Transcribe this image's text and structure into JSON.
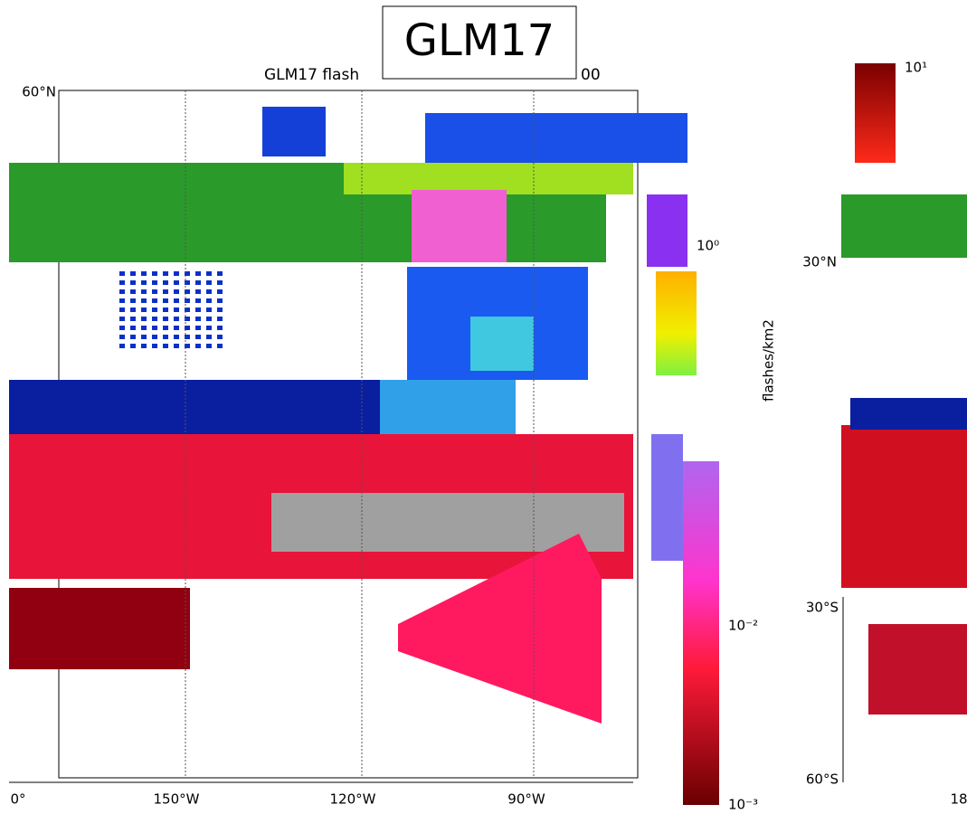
{
  "header": {
    "title": "GLM17"
  },
  "map": {
    "title_left": "GLM17 flash",
    "title_right": "00",
    "lat_labels": [
      "60°N",
      "30°N",
      "30°S",
      "60°S"
    ],
    "lon_labels": [
      "0°",
      "150°W",
      "120°W",
      "90°W",
      "18"
    ]
  },
  "colorbar": {
    "ticks": [
      "10¹",
      "10⁰",
      "10⁻²",
      "10⁻³"
    ],
    "label": "flashes/km2"
  }
}
